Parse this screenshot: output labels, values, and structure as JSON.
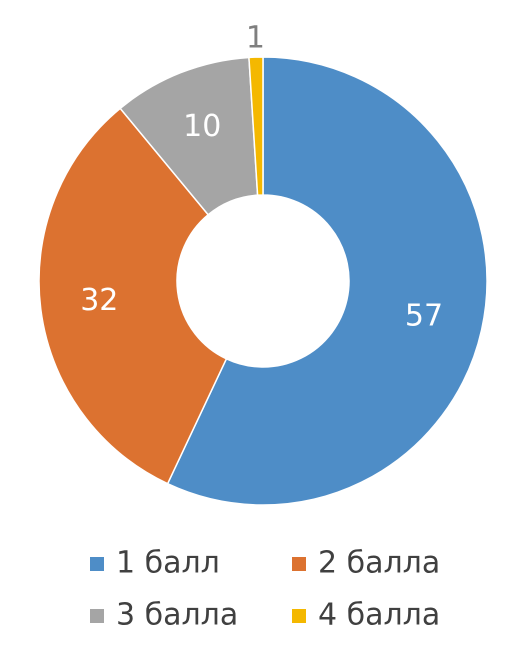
{
  "chart_data": {
    "type": "donut",
    "categories": [
      "1 балл",
      "2 балла",
      "3 балла",
      "4 балла"
    ],
    "values": [
      57,
      32,
      10,
      1
    ],
    "colors": [
      "#4e8dc7",
      "#dc7230",
      "#a5a5a5",
      "#f4b800"
    ],
    "legend": "bottom"
  }
}
